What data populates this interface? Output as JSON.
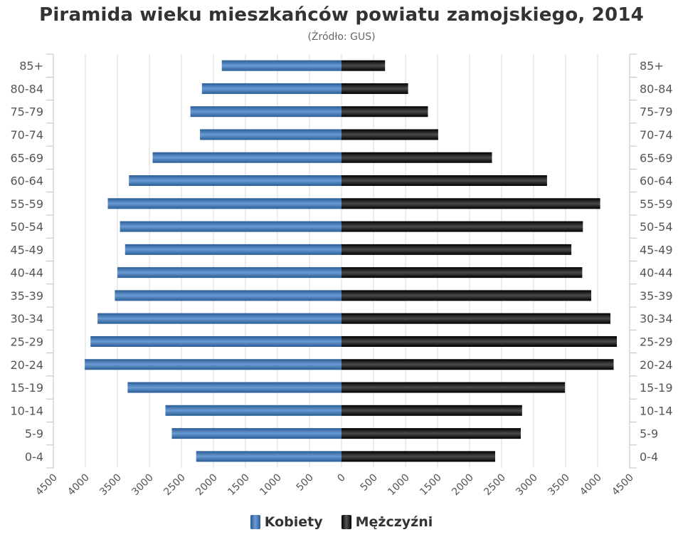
{
  "chart_data": {
    "type": "bar",
    "orientation": "horizontal-population-pyramid",
    "title": "Piramida wieku mieszkańców powiatu zamojskiego, 2014",
    "subtitle": "(Źródło: GUS)",
    "categories": [
      "85+",
      "80-84",
      "75-79",
      "70-74",
      "65-69",
      "60-64",
      "55-59",
      "50-54",
      "45-49",
      "40-44",
      "35-39",
      "30-34",
      "25-29",
      "20-24",
      "15-19",
      "10-14",
      "5-9",
      "0-4"
    ],
    "x_ticks": [
      4500,
      4000,
      3500,
      3000,
      2500,
      2000,
      1500,
      1000,
      500,
      0,
      500,
      1000,
      1500,
      2000,
      2500,
      3000,
      3500,
      4000,
      4500
    ],
    "xlim": [
      -4500,
      4500
    ],
    "series": [
      {
        "name": "Kobiety",
        "side": "left",
        "color": "#3b72b0",
        "values": [
          1870,
          2180,
          2360,
          2210,
          2950,
          3320,
          3650,
          3460,
          3380,
          3500,
          3540,
          3810,
          3920,
          4010,
          3340,
          2750,
          2650,
          2270
        ]
      },
      {
        "name": "Mężczyźni",
        "side": "right",
        "color": "#1a1a1a",
        "values": [
          680,
          1040,
          1350,
          1510,
          2350,
          3210,
          4040,
          3770,
          3590,
          3760,
          3900,
          4200,
          4300,
          4250,
          3490,
          2820,
          2800,
          2400
        ]
      }
    ],
    "grid": true,
    "legend_position": "bottom-center"
  }
}
